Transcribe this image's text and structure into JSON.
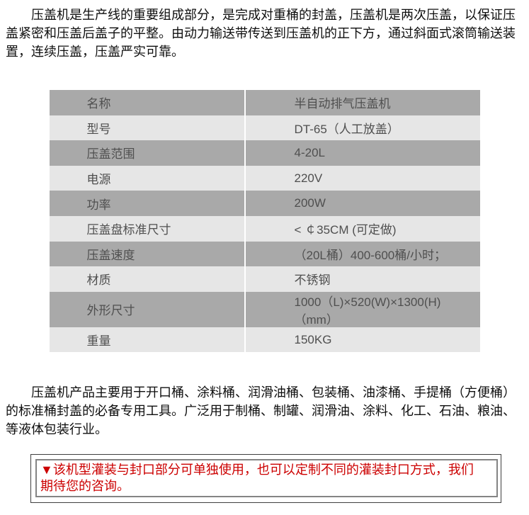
{
  "intro": "压盖机是生产线的重要组成部分，是完成对重桶的封盖，压盖机是两次压盖，以保证压盖紧密和压盖后盖子的平整。由动力输送带传送到压盖机的正下方，通过斜面式滚筒输送装置，连续压盖，压盖严实可靠。",
  "spec_table": {
    "rows": [
      {
        "label": "名称",
        "value": "半自动排气压盖机"
      },
      {
        "label": "型号",
        "value": "DT-65（人工放盖）"
      },
      {
        "label": "压盖范围",
        "value": "4-20L"
      },
      {
        "label": "电源",
        "value": "220V"
      },
      {
        "label": "功率",
        "value": "200W"
      },
      {
        "label": "压盖盘标准尺寸",
        "value": "< ￠35CM (可定做)"
      },
      {
        "label": "压盖速度",
        "value": "（20L桶）400-600桶/小时；"
      },
      {
        "label": "材质",
        "value": "不锈钢"
      },
      {
        "label": "外形尺寸",
        "value": "1000（L)×520(W)×1300(H) （mm）"
      },
      {
        "label": "重量",
        "value": "150KG"
      }
    ]
  },
  "description": "压盖机产品主要用于开口桶、涂料桶、润滑油桶、包装桶、油漆桶、手提桶（方便桶）的标准桶封盖的必备专用工具。广泛用于制桶、制罐、润滑油、涂料、化工、石油、粮油、等液体包装行业。",
  "notice": {
    "marker": "▼",
    "text": "该机型灌装与封口部分可单独使用，也可以定制不同的灌装封口方式，我们期待您的咨询。"
  },
  "colors": {
    "row_dark": "#a9a9a9",
    "row_light": "#e6e6e6",
    "table_text": "#4f4f4f",
    "notice_text": "#cc0000",
    "notice_outer_border": "#3f3f3f",
    "notice_inner_border": "#848484"
  }
}
